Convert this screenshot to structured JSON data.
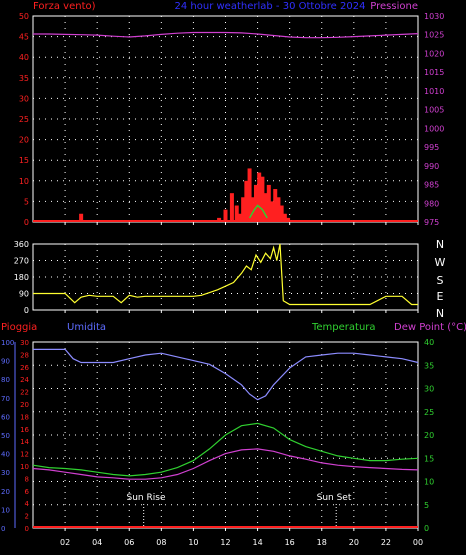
{
  "colors": {
    "background": "#000000",
    "axis": "#ffffff",
    "grid": "#ffffff",
    "red": "#ff2020",
    "blue_axis": "#5e6cff",
    "title": "#3030ff",
    "magenta": "#d040d0",
    "green": "#30d030",
    "yellow": "#ffff30",
    "humidity_line": "#8c8cff"
  },
  "header": {
    "left_label": "Forza vento)",
    "title": "24 hour weatherlab - 30 Ottobre 2024",
    "right_label": "Pressione"
  },
  "direction_labels": [
    "N",
    "W",
    "S",
    "E",
    "N"
  ],
  "bottom_labels": {
    "rain": "Pioggia",
    "humidity": "Umidita",
    "temperature": "Temperatura",
    "dew_point": "Dew Point (°C)"
  },
  "x_ticks": [
    "02",
    "04",
    "06",
    "08",
    "10",
    "12",
    "14",
    "16",
    "18",
    "20",
    "22",
    "00"
  ],
  "chart_data": [
    {
      "type": "line",
      "panel": "wind-pressure",
      "x_range": [
        0,
        24
      ],
      "left_axis": {
        "label": "Forza vento)",
        "ylim": [
          0,
          50
        ],
        "ticks": [
          0,
          5,
          10,
          15,
          20,
          25,
          30,
          35,
          40,
          45,
          50
        ]
      },
      "right_axis": {
        "label": "Pressione",
        "ylim": [
          975,
          1030
        ],
        "ticks": [
          975,
          980,
          985,
          990,
          995,
          1000,
          1005,
          1010,
          1015,
          1020,
          1025,
          1030
        ]
      },
      "series": [
        {
          "name": "Pressione",
          "axis": "right",
          "x": [
            0,
            1,
            2,
            3,
            4,
            5,
            6,
            7,
            8,
            9,
            10,
            11,
            12,
            13,
            14,
            15,
            16,
            17,
            18,
            19,
            20,
            21,
            22,
            23,
            24
          ],
          "y": [
            1025.2,
            1025.2,
            1025.1,
            1025.0,
            1024.9,
            1024.6,
            1024.4,
            1024.7,
            1025.1,
            1025.4,
            1025.6,
            1025.6,
            1025.6,
            1025.5,
            1025.2,
            1024.8,
            1024.4,
            1024.2,
            1024.2,
            1024.3,
            1024.5,
            1024.7,
            1024.9,
            1025.1,
            1025.3
          ]
        },
        {
          "name": "Forza vento",
          "axis": "left",
          "x": [
            3.0,
            11.6,
            12.0,
            12.4,
            12.7,
            12.9,
            13.1,
            13.3,
            13.5,
            13.7,
            13.9,
            14.1,
            14.3,
            14.5,
            14.7,
            14.9,
            15.1,
            15.3,
            15.5,
            15.7,
            15.9
          ],
          "y": [
            2,
            1,
            3,
            7,
            4,
            2,
            6,
            10,
            13,
            6,
            9,
            12,
            11,
            7,
            9,
            5,
            8,
            6,
            4,
            2,
            1
          ]
        },
        {
          "name": "Raffica",
          "axis": "left",
          "x": [
            13.5,
            13.8,
            14.0,
            14.3,
            14.6
          ],
          "y": [
            1,
            3,
            4,
            3,
            1
          ]
        }
      ]
    },
    {
      "type": "line",
      "panel": "wind-direction",
      "x_range": [
        0,
        24
      ],
      "ylim": [
        0,
        360
      ],
      "ticks": [
        0,
        90,
        180,
        270,
        360
      ],
      "series": [
        {
          "name": "Direzione vento",
          "x": [
            0,
            1,
            2,
            2.6,
            3,
            3.5,
            4,
            5,
            5.5,
            6,
            6.5,
            7,
            8,
            9,
            10,
            10.5,
            11,
            11.5,
            12,
            12.5,
            13,
            13.3,
            13.6,
            13.9,
            14.2,
            14.5,
            14.8,
            15.0,
            15.2,
            15.4,
            15.6,
            16,
            17,
            18,
            19,
            20,
            21,
            22,
            23,
            23.6,
            24
          ],
          "y": [
            90,
            90,
            90,
            40,
            70,
            80,
            75,
            75,
            40,
            80,
            70,
            75,
            75,
            75,
            75,
            80,
            95,
            110,
            130,
            150,
            200,
            240,
            220,
            300,
            260,
            310,
            280,
            340,
            270,
            360,
            50,
            30,
            30,
            30,
            30,
            30,
            30,
            75,
            75,
            30,
            30
          ]
        }
      ]
    },
    {
      "type": "line",
      "panel": "rain-humidity-temperature",
      "x_range": [
        0,
        24
      ],
      "rain_axis": {
        "label": "Pioggia",
        "ylim": [
          0,
          30
        ],
        "ticks": [
          0,
          2,
          4,
          6,
          8,
          10,
          12,
          14,
          16,
          18,
          20,
          22,
          24,
          26,
          28,
          30
        ]
      },
      "humidity_axis": {
        "label": "Umidita",
        "ylim": [
          0,
          100
        ],
        "ticks": [
          0,
          10,
          20,
          30,
          40,
          50,
          60,
          70,
          80,
          90,
          100
        ]
      },
      "temperature_axis": {
        "label": "Temperatura",
        "ylim": [
          0,
          40
        ],
        "ticks": [
          0,
          5,
          10,
          15,
          20,
          25,
          30,
          35,
          40
        ]
      },
      "annotations": [
        {
          "label": "Sun Rise",
          "x": 6.9
        },
        {
          "label": "Sun Set",
          "x": 18.9
        }
      ],
      "series": [
        {
          "name": "Umidita",
          "axis": "humidity",
          "x": [
            0,
            1,
            2,
            2.5,
            3,
            4,
            5,
            6,
            7,
            8,
            9,
            10,
            11,
            12,
            13,
            13.5,
            14,
            14.5,
            15,
            16,
            17,
            18,
            19,
            20,
            21,
            22,
            23,
            24
          ],
          "y": [
            96,
            96,
            96,
            91,
            89,
            89,
            89,
            91,
            93,
            94,
            92,
            90,
            88,
            83,
            77,
            72,
            69,
            71,
            77,
            86,
            92,
            93,
            94,
            94,
            93,
            92,
            91,
            89
          ]
        },
        {
          "name": "Temperatura",
          "axis": "temperature",
          "x": [
            0,
            1,
            2,
            3,
            4,
            5,
            6,
            7,
            8,
            9,
            10,
            11,
            12,
            13,
            14,
            15,
            16,
            17,
            18,
            19,
            20,
            21,
            22,
            23,
            24
          ],
          "y": [
            13.5,
            13.0,
            12.8,
            12.5,
            12.0,
            11.5,
            11.2,
            11.5,
            12.0,
            13.0,
            14.5,
            17.0,
            20.0,
            22.0,
            22.5,
            21.5,
            19.0,
            17.5,
            16.5,
            15.5,
            15.0,
            14.5,
            14.5,
            14.8,
            15.0
          ]
        },
        {
          "name": "Dew Point",
          "axis": "temperature",
          "x": [
            0,
            1,
            2,
            3,
            4,
            5,
            6,
            7,
            8,
            9,
            10,
            11,
            12,
            13,
            14,
            15,
            16,
            17,
            18,
            19,
            20,
            21,
            22,
            23,
            24
          ],
          "y": [
            12.8,
            12.5,
            12.0,
            11.5,
            11.0,
            10.8,
            10.5,
            10.5,
            10.8,
            11.5,
            12.8,
            14.5,
            16.0,
            16.8,
            17.0,
            16.5,
            15.5,
            14.8,
            14.0,
            13.5,
            13.2,
            13.0,
            12.8,
            12.6,
            12.5
          ]
        },
        {
          "name": "Pioggia",
          "axis": "rain",
          "x": [
            0,
            24
          ],
          "y": [
            0,
            0
          ]
        }
      ]
    }
  ]
}
